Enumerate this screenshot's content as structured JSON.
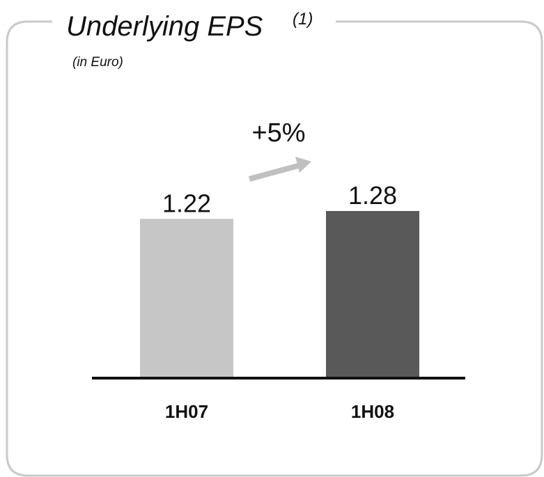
{
  "chart_data": {
    "type": "bar",
    "title": "Underlying EPS",
    "title_note": "(1)",
    "subtitle": "(in Euro)",
    "annotation": "+5%",
    "categories": [
      "1H07",
      "1H08"
    ],
    "values": [
      1.22,
      1.28
    ],
    "colors": [
      "#c6c6c6",
      "#595959"
    ]
  }
}
